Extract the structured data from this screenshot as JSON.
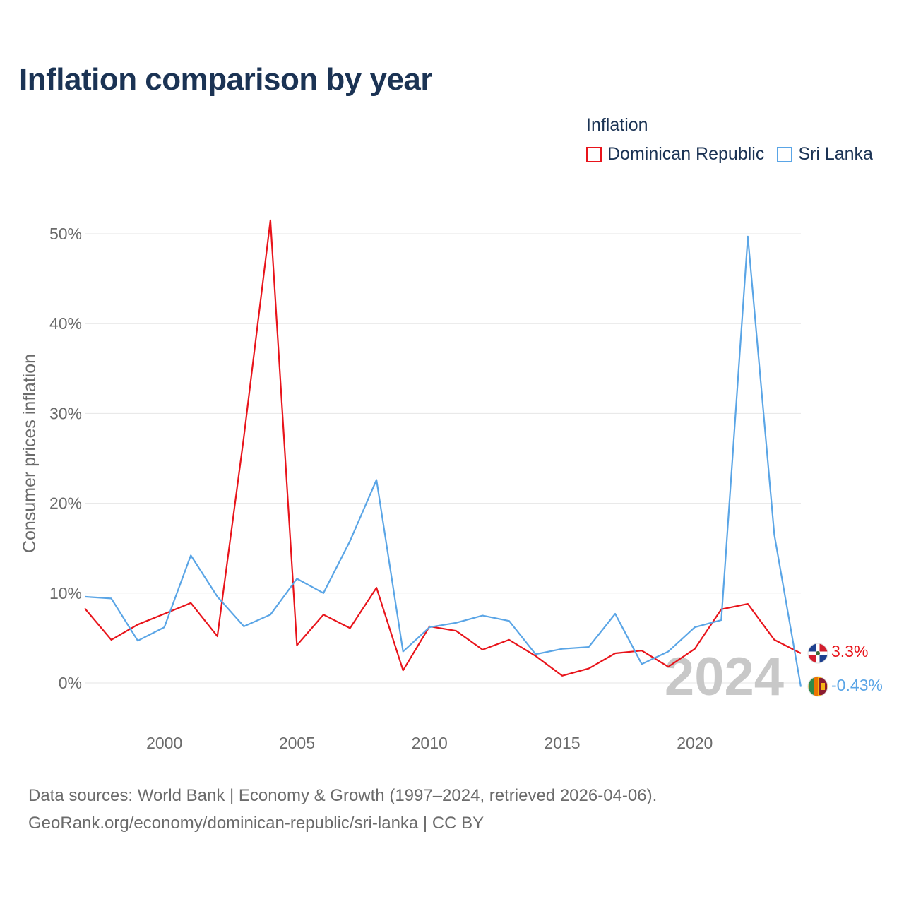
{
  "title": "Inflation comparison by year",
  "legend": {
    "title": "Inflation",
    "items": [
      {
        "name": "Dominican Republic",
        "color": "#e8141b"
      },
      {
        "name": "Sri Lanka",
        "color": "#5aa5e6"
      }
    ]
  },
  "source": {
    "line1": "Data sources: World Bank | Economy & Growth (1997–2024, retrieved 2026-04-06).",
    "line2": "GeoRank.org/economy/dominican-republic/sri-lanka | CC BY"
  },
  "chart_data": {
    "type": "line",
    "title": "Inflation comparison by year",
    "xlabel": "",
    "ylabel": "Consumer prices inflation",
    "xlim": [
      1997,
      2024
    ],
    "ylim": [
      0,
      50
    ],
    "yticks": [
      0,
      10,
      20,
      30,
      40,
      50
    ],
    "ytick_labels": [
      "0%",
      "10%",
      "20%",
      "30%",
      "40%",
      "50%"
    ],
    "xticks": [
      2000,
      2005,
      2010,
      2015,
      2020
    ],
    "xtick_labels": [
      "2000",
      "2005",
      "2010",
      "2015",
      "2020"
    ],
    "grid": true,
    "highlight_year": "2024",
    "x": [
      1997,
      1998,
      1999,
      2000,
      2001,
      2002,
      2003,
      2004,
      2005,
      2006,
      2007,
      2008,
      2009,
      2010,
      2011,
      2012,
      2013,
      2014,
      2015,
      2016,
      2017,
      2018,
      2019,
      2020,
      2021,
      2022,
      2023,
      2024
    ],
    "series": [
      {
        "name": "Dominican Republic",
        "color": "#e8141b",
        "end_label": "3.3%",
        "values": [
          8.3,
          4.8,
          6.5,
          7.7,
          8.9,
          5.2,
          27.4,
          51.5,
          4.2,
          7.6,
          6.1,
          10.6,
          1.4,
          6.3,
          5.8,
          3.7,
          4.8,
          3.0,
          0.8,
          1.6,
          3.3,
          3.6,
          1.8,
          3.8,
          8.2,
          8.8,
          4.8,
          3.3
        ]
      },
      {
        "name": "Sri Lanka",
        "color": "#5aa5e6",
        "end_label": "-0.43%",
        "values": [
          9.6,
          9.4,
          4.7,
          6.2,
          14.2,
          9.6,
          6.3,
          7.6,
          11.6,
          10.0,
          15.8,
          22.6,
          3.5,
          6.2,
          6.7,
          7.5,
          6.9,
          3.2,
          3.8,
          4.0,
          7.7,
          2.1,
          3.5,
          6.2,
          7.0,
          49.7,
          16.5,
          -0.43
        ]
      }
    ]
  }
}
